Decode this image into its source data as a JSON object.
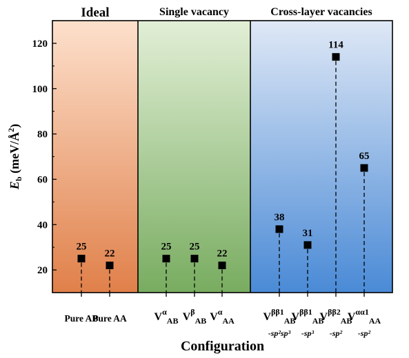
{
  "chart_data": {
    "type": "scatter",
    "xlabel": "Configuration",
    "ylabel_main": "E",
    "ylabel_sub": "b",
    "ylabel_unit": " (meV/Å",
    "ylabel_exp": "2",
    "ylabel_close": ")",
    "ylim": [
      10,
      130
    ],
    "yticks": [
      20,
      40,
      60,
      80,
      100,
      120
    ],
    "grid": false,
    "legend": "none",
    "marker": "square",
    "marker_color": "#000000",
    "stems": "dashed-to-x-axis",
    "groups": [
      {
        "label": "Ideal",
        "first": 0,
        "last": 1,
        "gradient": [
          "#fde0cc",
          "#e0804a"
        ]
      },
      {
        "label": "Single vacancy",
        "first": 2,
        "last": 4,
        "gradient": [
          "#e2efd6",
          "#78ac60"
        ]
      },
      {
        "label": "Cross-layer vacancies",
        "first": 5,
        "last": 8,
        "gradient": [
          "#dfe8f6",
          "#4a8ad6"
        ]
      }
    ],
    "points": [
      {
        "id": "pure-ab",
        "name": "Pure AB",
        "value": 25,
        "value_label": "25"
      },
      {
        "id": "pure-aa",
        "name": "Pure AA",
        "value": 22,
        "value_label": "22"
      },
      {
        "id": "v-ab-alpha",
        "base": "V",
        "sup": "α",
        "sub": "AB",
        "value": 25,
        "value_label": "25"
      },
      {
        "id": "v-ab-beta",
        "base": "V",
        "sup": "β",
        "sub": "AB",
        "value": 25,
        "value_label": "25"
      },
      {
        "id": "v-aa-alpha",
        "base": "V",
        "sup": "α",
        "sub": "AA",
        "value": 22,
        "value_label": "22"
      },
      {
        "id": "v-ab-bb1-sp2sp3",
        "base": "V",
        "sup": "ββ",
        "sup_tail": "1",
        "sub": "AB",
        "suffix": "-sp²sp³",
        "value": 38,
        "value_label": "38"
      },
      {
        "id": "v-ab-bb1-sp3",
        "base": "V",
        "sup": "ββ",
        "sup_tail": "1",
        "sub": "AB",
        "suffix": "-sp³",
        "value": 31,
        "value_label": "31"
      },
      {
        "id": "v-ab-bb2-sp2",
        "base": "V",
        "sup": "ββ",
        "sup_tail": "2",
        "sub": "AB",
        "suffix": "-sp²",
        "value": 114,
        "value_label": "114"
      },
      {
        "id": "v-aa-aa1-sp2",
        "base": "V",
        "sup": "αα",
        "sup_tail": "1",
        "sub": "AA",
        "suffix": "-sp²",
        "value": 65,
        "value_label": "65"
      }
    ]
  }
}
